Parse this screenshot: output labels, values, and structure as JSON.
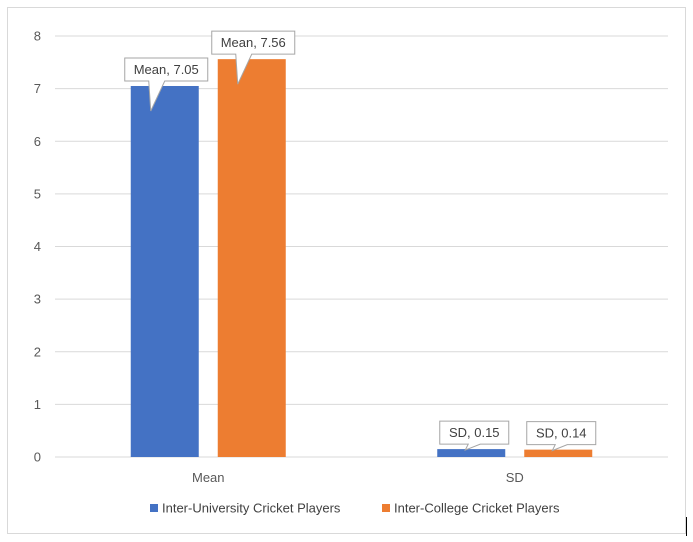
{
  "chart_data": {
    "type": "bar",
    "categories": [
      "Mean",
      "SD"
    ],
    "series": [
      {
        "name": "Inter-University Cricket Players",
        "color": "#4472C4",
        "values": [
          7.05,
          0.15
        ]
      },
      {
        "name": "Inter-College Cricket Players",
        "color": "#ED7D31",
        "values": [
          7.56,
          0.14
        ]
      }
    ],
    "data_labels": [
      [
        "Mean, 7.05",
        "SD, 0.15"
      ],
      [
        "Mean, 7.56",
        "SD, 0.14"
      ]
    ],
    "ylim": [
      0,
      8
    ],
    "yticks": [
      0,
      1,
      2,
      3,
      4,
      5,
      6,
      7,
      8
    ],
    "grid": true,
    "legend_position": "bottom",
    "title": "",
    "xlabel": "",
    "ylabel": ""
  }
}
